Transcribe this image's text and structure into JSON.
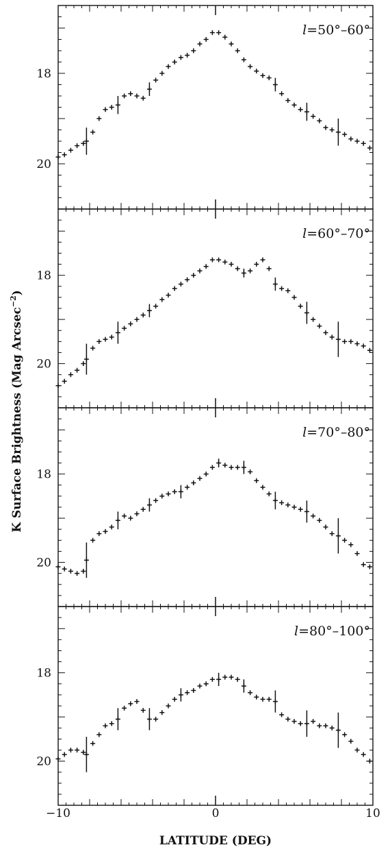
{
  "chart_data": [
    {
      "type": "scatter",
      "panel_label": "l=50°–60°",
      "label_var": "l",
      "label_text": "=50°–60°",
      "xlim": [
        -10,
        10
      ],
      "ylim": [
        21,
        16.5
      ],
      "y_ticks": [
        18,
        20
      ],
      "x": [
        -10,
        -9.6,
        -9.2,
        -8.8,
        -8.4,
        -8.2,
        -7.8,
        -7.4,
        -7.0,
        -6.6,
        -6.2,
        -5.8,
        -5.4,
        -5.0,
        -4.6,
        -4.2,
        -3.8,
        -3.4,
        -3.0,
        -2.6,
        -2.2,
        -1.8,
        -1.4,
        -1.0,
        -0.6,
        -0.2,
        0.2,
        0.6,
        1.0,
        1.4,
        1.8,
        2.2,
        2.6,
        3.0,
        3.4,
        3.8,
        4.2,
        4.6,
        5.0,
        5.4,
        5.8,
        6.2,
        6.6,
        7.0,
        7.4,
        7.8,
        8.2,
        8.6,
        9.0,
        9.4,
        9.8
      ],
      "y": [
        19.85,
        19.8,
        19.7,
        19.6,
        19.55,
        19.5,
        19.3,
        19.0,
        18.8,
        18.75,
        18.7,
        18.5,
        18.45,
        18.5,
        18.55,
        18.35,
        18.15,
        18.0,
        17.85,
        17.75,
        17.65,
        17.6,
        17.5,
        17.35,
        17.25,
        17.1,
        17.1,
        17.2,
        17.35,
        17.5,
        17.7,
        17.85,
        17.95,
        18.05,
        18.1,
        18.25,
        18.45,
        18.6,
        18.7,
        18.8,
        18.85,
        18.95,
        19.05,
        19.2,
        19.25,
        19.3,
        19.35,
        19.45,
        19.5,
        19.55,
        19.65
      ],
      "error_bars": [
        {
          "x": -8.2,
          "err": 0.3
        },
        {
          "x": -6.2,
          "err": 0.2
        },
        {
          "x": -4.2,
          "err": 0.15
        },
        {
          "x": 3.8,
          "err": 0.15
        },
        {
          "x": 5.8,
          "err": 0.2
        },
        {
          "x": 7.8,
          "err": 0.3
        }
      ]
    },
    {
      "type": "scatter",
      "panel_label": "l=60°–70°",
      "label_var": "l",
      "label_text": "=60°–70°",
      "xlim": [
        -10,
        10
      ],
      "ylim": [
        21,
        16.5
      ],
      "y_ticks": [
        18,
        20
      ],
      "x": [
        -10,
        -9.6,
        -9.2,
        -8.8,
        -8.4,
        -8.2,
        -7.8,
        -7.4,
        -7.0,
        -6.6,
        -6.2,
        -5.8,
        -5.4,
        -5.0,
        -4.6,
        -4.2,
        -3.8,
        -3.4,
        -3.0,
        -2.6,
        -2.2,
        -1.8,
        -1.4,
        -1.0,
        -0.6,
        -0.2,
        0.2,
        0.6,
        1.0,
        1.4,
        1.8,
        2.2,
        2.6,
        3.0,
        3.4,
        3.8,
        4.2,
        4.6,
        5.0,
        5.4,
        5.8,
        6.2,
        6.6,
        7.0,
        7.4,
        7.8,
        8.2,
        8.6,
        9.0,
        9.4,
        9.8
      ],
      "y": [
        20.5,
        20.4,
        20.25,
        20.15,
        20.0,
        19.9,
        19.65,
        19.5,
        19.45,
        19.4,
        19.3,
        19.2,
        19.1,
        19.0,
        18.9,
        18.8,
        18.7,
        18.55,
        18.45,
        18.3,
        18.2,
        18.1,
        18.0,
        17.9,
        17.8,
        17.65,
        17.65,
        17.7,
        17.75,
        17.85,
        17.95,
        17.9,
        17.75,
        17.65,
        17.85,
        18.2,
        18.3,
        18.35,
        18.5,
        18.7,
        18.85,
        19.0,
        19.15,
        19.3,
        19.4,
        19.45,
        19.5,
        19.5,
        19.55,
        19.6,
        19.7
      ],
      "error_bars": [
        {
          "x": -8.2,
          "err": 0.35
        },
        {
          "x": -6.2,
          "err": 0.25
        },
        {
          "x": -4.2,
          "err": 0.15
        },
        {
          "x": 1.8,
          "err": 0.1
        },
        {
          "x": 3.8,
          "err": 0.15
        },
        {
          "x": 5.8,
          "err": 0.25
        },
        {
          "x": 7.8,
          "err": 0.4
        }
      ]
    },
    {
      "type": "scatter",
      "panel_label": "l=70°–80°",
      "label_var": "l",
      "label_text": "=70°–80°",
      "xlim": [
        -10,
        10
      ],
      "ylim": [
        21,
        16.5
      ],
      "y_ticks": [
        18,
        20
      ],
      "x": [
        -10,
        -9.6,
        -9.2,
        -8.8,
        -8.4,
        -8.2,
        -7.8,
        -7.4,
        -7.0,
        -6.6,
        -6.2,
        -5.8,
        -5.4,
        -5.0,
        -4.6,
        -4.2,
        -3.8,
        -3.4,
        -3.0,
        -2.6,
        -2.2,
        -1.8,
        -1.4,
        -1.0,
        -0.6,
        -0.2,
        0.2,
        0.6,
        1.0,
        1.4,
        1.8,
        2.2,
        2.6,
        3.0,
        3.4,
        3.8,
        4.2,
        4.6,
        5.0,
        5.4,
        5.8,
        6.2,
        6.6,
        7.0,
        7.4,
        7.8,
        8.2,
        8.6,
        9.0,
        9.4,
        9.8
      ],
      "y": [
        20.1,
        20.15,
        20.2,
        20.25,
        20.2,
        19.95,
        19.5,
        19.35,
        19.3,
        19.2,
        19.05,
        18.95,
        19.0,
        18.9,
        18.8,
        18.7,
        18.6,
        18.5,
        18.45,
        18.4,
        18.4,
        18.3,
        18.2,
        18.1,
        18.0,
        17.85,
        17.75,
        17.8,
        17.85,
        17.85,
        17.85,
        17.95,
        18.15,
        18.3,
        18.45,
        18.6,
        18.65,
        18.7,
        18.75,
        18.8,
        18.85,
        18.95,
        19.05,
        19.2,
        19.35,
        19.4,
        19.5,
        19.6,
        19.8,
        20.05,
        20.1
      ],
      "error_bars": [
        {
          "x": -8.2,
          "err": 0.4
        },
        {
          "x": -6.2,
          "err": 0.2
        },
        {
          "x": -4.2,
          "err": 0.15
        },
        {
          "x": -2.2,
          "err": 0.15
        },
        {
          "x": 0.2,
          "err": 0.1
        },
        {
          "x": 1.8,
          "err": 0.15
        },
        {
          "x": 3.8,
          "err": 0.2
        },
        {
          "x": 5.8,
          "err": 0.25
        },
        {
          "x": 7.8,
          "err": 0.4
        }
      ]
    },
    {
      "type": "scatter",
      "panel_label": "l=80°–100°",
      "label_var": "l",
      "label_text": "=80°–100°",
      "xlim": [
        -10,
        10
      ],
      "ylim": [
        21,
        16.5
      ],
      "y_ticks": [
        18,
        20
      ],
      "x": [
        -10,
        -9.6,
        -9.2,
        -8.8,
        -8.4,
        -8.2,
        -7.8,
        -7.4,
        -7.0,
        -6.6,
        -6.2,
        -5.8,
        -5.4,
        -5.0,
        -4.6,
        -4.2,
        -3.8,
        -3.4,
        -3.0,
        -2.6,
        -2.2,
        -1.8,
        -1.4,
        -1.0,
        -0.6,
        -0.2,
        0.2,
        0.6,
        1.0,
        1.4,
        1.8,
        2.2,
        2.6,
        3.0,
        3.4,
        3.8,
        4.2,
        4.6,
        5.0,
        5.4,
        5.8,
        6.2,
        6.6,
        7.0,
        7.4,
        7.8,
        8.2,
        8.6,
        9.0,
        9.4,
        9.8
      ],
      "y": [
        19.95,
        19.85,
        19.75,
        19.75,
        19.8,
        19.85,
        19.6,
        19.4,
        19.2,
        19.15,
        19.05,
        18.8,
        18.7,
        18.65,
        18.85,
        19.05,
        19.05,
        18.9,
        18.75,
        18.6,
        18.5,
        18.45,
        18.4,
        18.3,
        18.25,
        18.15,
        18.15,
        18.1,
        18.1,
        18.15,
        18.3,
        18.45,
        18.55,
        18.6,
        18.6,
        18.65,
        18.95,
        19.05,
        19.1,
        19.15,
        19.15,
        19.1,
        19.2,
        19.2,
        19.25,
        19.3,
        19.4,
        19.55,
        19.75,
        19.85,
        20.0
      ],
      "error_bars": [
        {
          "x": -8.2,
          "err": 0.4
        },
        {
          "x": -6.2,
          "err": 0.25
        },
        {
          "x": -4.2,
          "err": 0.25
        },
        {
          "x": -2.2,
          "err": 0.15
        },
        {
          "x": 0.2,
          "err": 0.15
        },
        {
          "x": 1.8,
          "err": 0.15
        },
        {
          "x": 3.8,
          "err": 0.25
        },
        {
          "x": 5.8,
          "err": 0.3
        },
        {
          "x": 7.8,
          "err": 0.4
        }
      ]
    }
  ],
  "axes": {
    "xlabel": "LATITUDE (DEG)",
    "ylabel": "K Surface Brightness (Mag Arcsec",
    "ylabel_sup": "−2",
    "ylabel_close": ")",
    "x_tick_labels": [
      "−10",
      "0",
      "10"
    ],
    "y_tick_labels": [
      "18",
      "20"
    ]
  }
}
